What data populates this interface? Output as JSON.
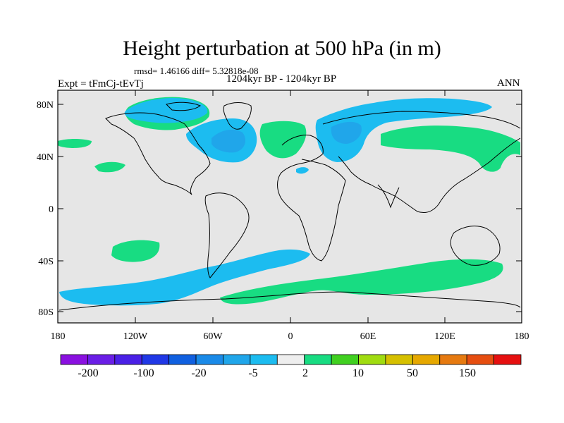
{
  "title": "Height perturbation at 500 hPa (in m)",
  "stats_line": "rmsd= 1.46166 diff= 5.32818e-08",
  "period": "1204kyr BP - 1204kyr BP",
  "experiment": "Expt = tFmCj-tEvTj",
  "season": "ANN",
  "map": {
    "projection": "cylindrical-equidistant",
    "lon_range": [
      -180,
      180
    ],
    "lat_range": [
      -90,
      90
    ],
    "background_color": "#e6e6e6",
    "coastline_color": "#000000",
    "lat_ticks": [
      {
        "label": "80N"
      },
      {
        "label": "40N"
      },
      {
        "label": "0"
      },
      {
        "label": "40S"
      },
      {
        "label": "80S"
      }
    ],
    "lon_ticks": [
      {
        "label": "180"
      },
      {
        "label": "120W"
      },
      {
        "label": "60W"
      },
      {
        "label": "0"
      },
      {
        "label": "60E"
      },
      {
        "label": "120E"
      },
      {
        "label": "180"
      }
    ]
  },
  "colorbar": {
    "colors": [
      "#8a10e0",
      "#6a1ee6",
      "#4a20e6",
      "#2038e6",
      "#1060e0",
      "#1a8ae8",
      "#20a6ea",
      "#1cbcf0",
      "#eeeeee",
      "#18dc82",
      "#40d020",
      "#a0dc10",
      "#d6c000",
      "#e6a800",
      "#e67a10",
      "#e64e10",
      "#e61010"
    ],
    "labels": [
      "-200",
      "-100",
      "-20",
      "-5",
      "2",
      "10",
      "50",
      "150"
    ]
  }
}
